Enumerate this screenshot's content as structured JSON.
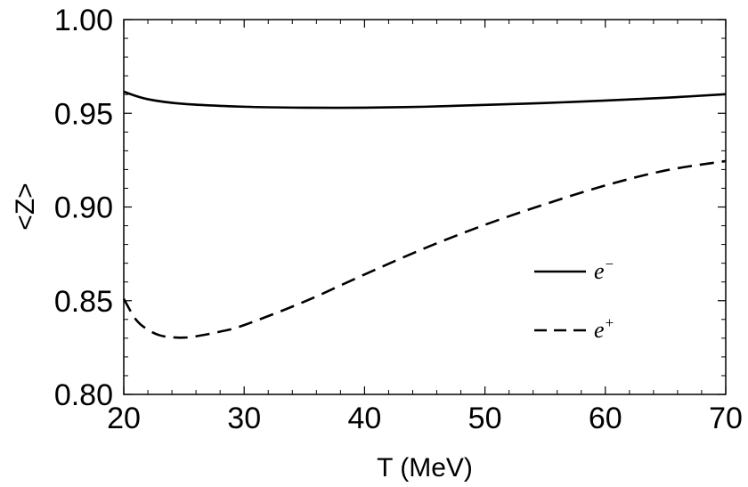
{
  "chart_data": {
    "type": "line",
    "title": "",
    "xlabel": "T (MeV)",
    "ylabel": "<Z>",
    "xlim": [
      20,
      70
    ],
    "ylim": [
      0.8,
      1.0
    ],
    "xticks": [
      20,
      30,
      40,
      50,
      60,
      70
    ],
    "xtick_labels": [
      "20",
      "30",
      "40",
      "50",
      "60",
      "70"
    ],
    "yticks": [
      0.8,
      0.85,
      0.9,
      0.95,
      1.0
    ],
    "ytick_labels": [
      "0.80",
      "0.85",
      "0.90",
      "0.95",
      "1.00"
    ],
    "grid": false,
    "legend_position": "center-right",
    "series": [
      {
        "name": "e",
        "sup": "−",
        "style": "solid",
        "color": "#000000",
        "x": [
          20,
          22,
          25,
          30,
          35,
          40,
          45,
          50,
          55,
          60,
          65,
          70
        ],
        "y": [
          0.9615,
          0.9575,
          0.955,
          0.9535,
          0.953,
          0.953,
          0.9535,
          0.9545,
          0.9555,
          0.9568,
          0.9583,
          0.9602
        ]
      },
      {
        "name": "e",
        "sup": "+",
        "style": "dashed",
        "color": "#000000",
        "x": [
          20,
          21,
          22,
          23,
          24,
          25,
          26,
          28,
          30,
          35,
          40,
          45,
          50,
          55,
          60,
          65,
          70
        ],
        "y": [
          0.851,
          0.84,
          0.8345,
          0.8315,
          0.8305,
          0.8303,
          0.831,
          0.8335,
          0.837,
          0.8495,
          0.864,
          0.878,
          0.8905,
          0.9015,
          0.9115,
          0.9195,
          0.9245
        ]
      }
    ]
  }
}
